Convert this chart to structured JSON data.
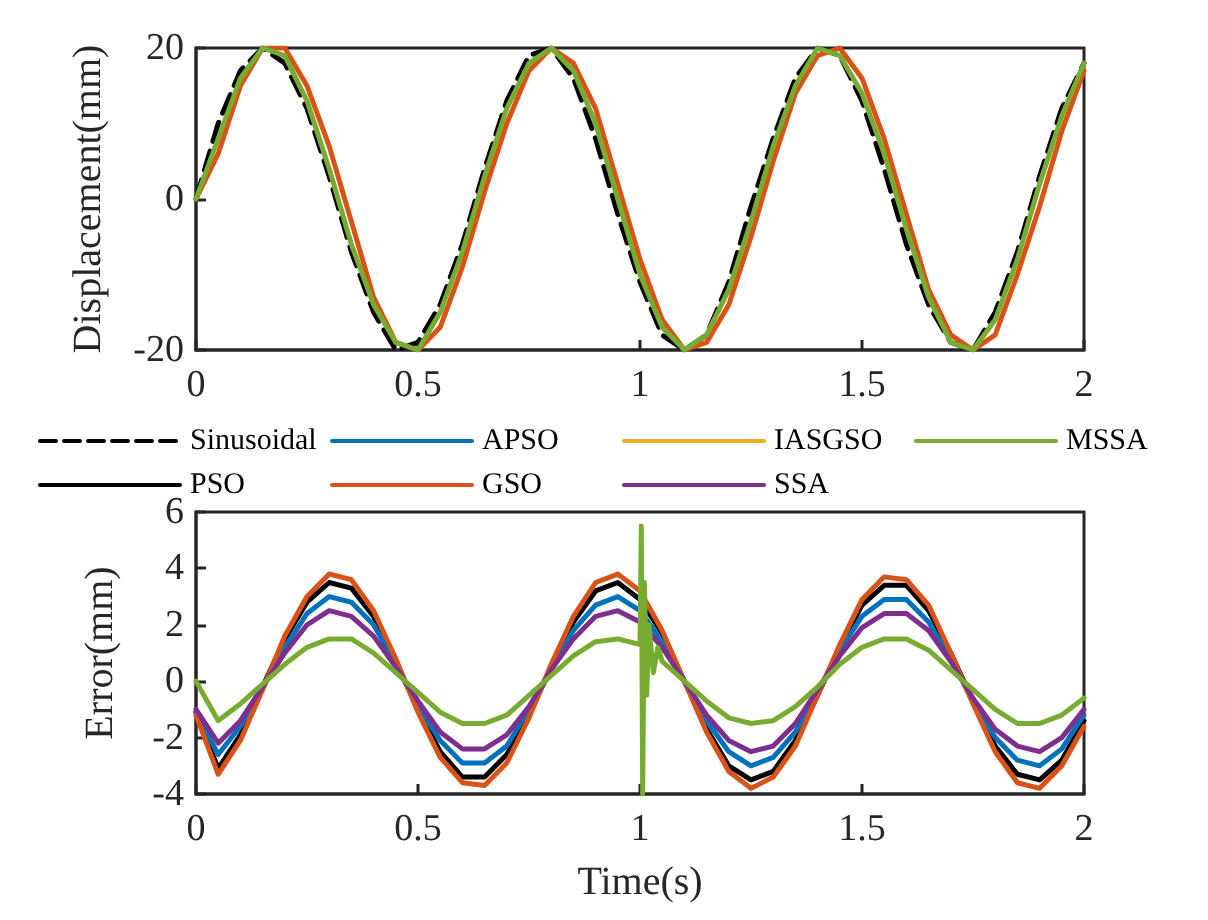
{
  "chart_data": [
    {
      "type": "line",
      "ylabel": "Displacement(mm)",
      "xlim": [
        0,
        2
      ],
      "xticks": [
        0,
        0.5,
        1,
        1.5,
        2
      ],
      "ylim": [
        -20,
        20
      ],
      "yticks": [
        -20,
        0,
        20
      ],
      "grid": false,
      "legend": "bottom",
      "marker": "none",
      "x": [
        0,
        0.05,
        0.1,
        0.15,
        0.2,
        0.25,
        0.3,
        0.35,
        0.4,
        0.45,
        0.5,
        0.55,
        0.6,
        0.65,
        0.7,
        0.75,
        0.8,
        0.85,
        0.9,
        0.95,
        1,
        1.05,
        1.1,
        1.15,
        1.2,
        1.25,
        1.3,
        1.35,
        1.4,
        1.45,
        1.5,
        1.55,
        1.6,
        1.65,
        1.7,
        1.75,
        1.8,
        1.85,
        1.9,
        1.95,
        2
      ],
      "series": [
        {
          "name": "Sinusoidal",
          "color": "#000000",
          "line_style": "dashed",
          "values": [
            0,
            10,
            17,
            20,
            18,
            12,
            3,
            -7,
            -15,
            -20,
            -19,
            -14,
            -6,
            4,
            13,
            19,
            20,
            16,
            8,
            -2,
            -11,
            -18,
            -20,
            -18,
            -11,
            -1,
            8,
            16,
            20,
            19,
            13,
            4,
            -6,
            -14,
            -19,
            -20,
            -15,
            -7,
            3,
            12,
            18
          ]
        },
        {
          "name": "PSO",
          "color": "#000000",
          "values": [
            null,
            null,
            null,
            null,
            null,
            null,
            null,
            null,
            null,
            null,
            null,
            null,
            null,
            null,
            null,
            null,
            null,
            null,
            null,
            null,
            null,
            null,
            null,
            null,
            null,
            null,
            null,
            null,
            null,
            null,
            null,
            null,
            null,
            null,
            null,
            null,
            null,
            null,
            null,
            null,
            null
          ]
        },
        {
          "name": "APSO",
          "color": "#0072bd",
          "values": [
            null,
            null,
            null,
            null,
            null,
            null,
            null,
            null,
            null,
            null,
            null,
            null,
            null,
            null,
            null,
            null,
            null,
            null,
            null,
            null,
            null,
            null,
            null,
            null,
            null,
            null,
            null,
            null,
            null,
            null,
            null,
            null,
            null,
            null,
            null,
            null,
            null,
            null,
            null,
            null,
            null
          ]
        },
        {
          "name": "GSO",
          "color": "#d95319",
          "values": [
            0,
            6,
            15,
            20,
            20,
            15,
            7,
            -3,
            -13,
            -19,
            -20,
            -17,
            -9,
            1,
            10,
            17,
            20,
            18,
            12,
            2,
            -8,
            -16,
            -20,
            -19,
            -14,
            -5,
            5,
            14,
            19,
            20,
            16,
            8,
            -2,
            -12,
            -18,
            -20,
            -18,
            -10,
            -1,
            9,
            17
          ]
        },
        {
          "name": "IASGSO",
          "color": "#edb120",
          "values": [
            null,
            null,
            null,
            null,
            null,
            null,
            null,
            null,
            null,
            null,
            null,
            null,
            null,
            null,
            null,
            null,
            null,
            null,
            null,
            null,
            null,
            null,
            null,
            null,
            null,
            null,
            null,
            null,
            null,
            null,
            null,
            null,
            null,
            null,
            null,
            null,
            null,
            null,
            null,
            null,
            null
          ]
        },
        {
          "name": "SSA",
          "color": "#7e2f8e",
          "values": [
            null,
            null,
            null,
            null,
            null,
            null,
            null,
            null,
            null,
            null,
            null,
            null,
            null,
            null,
            null,
            null,
            null,
            null,
            null,
            null,
            null,
            null,
            null,
            null,
            null,
            null,
            null,
            null,
            null,
            null,
            null,
            null,
            null,
            null,
            null,
            null,
            null,
            null,
            null,
            null,
            null
          ]
        },
        {
          "name": "MSSA",
          "color": "#77ac30",
          "values": [
            0,
            8,
            16,
            20,
            19,
            13,
            4,
            -6,
            -14,
            -19,
            -20,
            -15,
            -7,
            3,
            12,
            18,
            20,
            17,
            10,
            0,
            -10,
            -17,
            -20,
            -18,
            -12,
            -3,
            7,
            15,
            20,
            19,
            14,
            6,
            -4,
            -13,
            -19,
            -20,
            -16,
            -8,
            2,
            11,
            18
          ]
        }
      ]
    },
    {
      "type": "line",
      "xlabel": "Time(s)",
      "ylabel": "Error(mm)",
      "xlim": [
        0,
        2
      ],
      "xticks": [
        0,
        0.5,
        1,
        1.5,
        2
      ],
      "ylim": [
        -4,
        6
      ],
      "yticks": [
        -4,
        -2,
        0,
        2,
        4,
        6
      ],
      "grid": false,
      "marker": "none",
      "x": [
        0,
        0.05,
        0.1,
        0.15,
        0.2,
        0.25,
        0.3,
        0.35,
        0.4,
        0.45,
        0.5,
        0.55,
        0.6,
        0.65,
        0.7,
        0.75,
        0.8,
        0.85,
        0.9,
        0.95,
        1,
        1.05,
        1.1,
        1.15,
        1.2,
        1.25,
        1.3,
        1.35,
        1.4,
        1.45,
        1.5,
        1.55,
        1.6,
        1.65,
        1.7,
        1.75,
        1.8,
        1.85,
        1.9,
        1.95,
        2
      ],
      "series": [
        {
          "color": "#000000",
          "values": [
            -1.1,
            -3.1,
            -1.9,
            -0.2,
            1.5,
            2.8,
            3.5,
            3.3,
            2.3,
            0.7,
            -1.0,
            -2.5,
            -3.4,
            -3.4,
            -2.6,
            -1.2,
            0.5,
            2.1,
            3.2,
            3.5,
            2.9,
            1.7,
            0,
            -1.7,
            -3.0,
            -3.5,
            -3.2,
            -2.1,
            -0.5,
            1.2,
            2.7,
            3.4,
            3.4,
            2.5,
            1.0,
            -0.7,
            -2.3,
            -3.3,
            -3.5,
            -2.8,
            -1.4
          ]
        },
        {
          "color": "#0072bd",
          "values": [
            -1.1,
            -2.6,
            -1.6,
            -0.2,
            1.2,
            2.4,
            3.0,
            2.8,
            2.0,
            0.6,
            -0.9,
            -2.1,
            -2.9,
            -2.9,
            -2.3,
            -1.0,
            0.4,
            1.8,
            2.7,
            3.0,
            2.5,
            1.4,
            0,
            -1.4,
            -2.5,
            -3.0,
            -2.7,
            -1.8,
            -0.4,
            1.1,
            2.3,
            2.9,
            2.9,
            2.1,
            0.8,
            -0.7,
            -2.0,
            -2.8,
            -3.0,
            -2.4,
            -1.2
          ]
        },
        {
          "color": "#d95319",
          "values": [
            -1.2,
            -3.3,
            -2.1,
            -0.3,
            1.6,
            3.0,
            3.8,
            3.6,
            2.5,
            0.8,
            -1.1,
            -2.7,
            -3.6,
            -3.7,
            -2.9,
            -1.3,
            0.6,
            2.3,
            3.5,
            3.8,
            3.2,
            1.8,
            0,
            -1.8,
            -3.2,
            -3.8,
            -3.4,
            -2.3,
            -0.5,
            1.3,
            2.9,
            3.7,
            3.6,
            2.7,
            1.0,
            -0.8,
            -2.5,
            -3.6,
            -3.8,
            -3.0,
            -1.6
          ]
        },
        {
          "color": "#7e2f8e",
          "values": [
            -1.0,
            -2.2,
            -1.4,
            -0.2,
            1.0,
            2.0,
            2.5,
            2.3,
            1.6,
            0.5,
            -0.7,
            -1.8,
            -2.4,
            -2.4,
            -1.9,
            -0.9,
            0.4,
            1.5,
            2.3,
            2.5,
            2.1,
            1.2,
            0,
            -1.2,
            -2.1,
            -2.5,
            -2.3,
            -1.5,
            -0.3,
            0.9,
            1.9,
            2.4,
            2.4,
            1.8,
            0.7,
            -0.6,
            -1.7,
            -2.3,
            -2.5,
            -2.0,
            -1.0
          ]
        },
        {
          "color": "#77ac30",
          "x": [
            0,
            0.05,
            0.1,
            0.15,
            0.2,
            0.25,
            0.3,
            0.35,
            0.4,
            0.45,
            0.5,
            0.55,
            0.6,
            0.65,
            0.7,
            0.75,
            0.8,
            0.85,
            0.9,
            0.95,
            1,
            1.003,
            1.006,
            1.01,
            1.015,
            1.02,
            1.03,
            1.04,
            1.05,
            1.1,
            1.15,
            1.2,
            1.25,
            1.3,
            1.35,
            1.4,
            1.45,
            1.5,
            1.55,
            1.6,
            1.65,
            1.7,
            1.75,
            1.8,
            1.85,
            1.9,
            1.95,
            2
          ],
          "values": [
            0,
            -1.4,
            -0.8,
            -0.1,
            0.6,
            1.2,
            1.5,
            1.5,
            1.0,
            0.3,
            -0.4,
            -1.1,
            -1.5,
            -1.5,
            -1.2,
            -0.5,
            0.2,
            0.9,
            1.4,
            1.5,
            1.3,
            5.5,
            -4,
            3.5,
            -0.5,
            2.0,
            0.3,
            1.2,
            0.7,
            0,
            -0.7,
            -1.3,
            -1.5,
            -1.4,
            -0.9,
            -0.2,
            0.6,
            1.2,
            1.5,
            1.5,
            1.1,
            0.4,
            -0.3,
            -1.0,
            -1.5,
            -1.5,
            -1.2,
            -0.6
          ]
        }
      ]
    }
  ]
}
